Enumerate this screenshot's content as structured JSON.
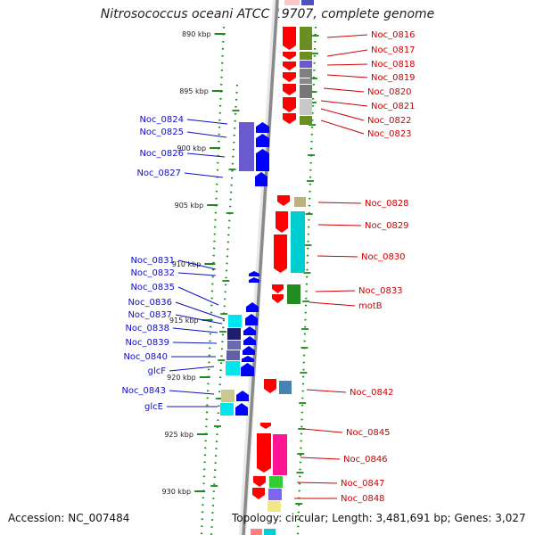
{
  "title": "Nitrosococcus oceani ATCC 19707, complete genome",
  "accession": "Accession: NC_007484",
  "topology": "Topology: circular; Length: 3,481,691 bp; Genes: 3,027",
  "colors": {
    "forward_gene": "#ff0000",
    "reverse_gene": "#0000ff",
    "label_forward": "#d00000",
    "label_reverse": "#1010c0",
    "scale_tick": "#1a8a1a",
    "backbone": "#8a8a8a"
  },
  "scale": {
    "unit": "kbp",
    "labels": [
      "890 kbp",
      "895 kbp",
      "900 kbp",
      "905 kbp",
      "910 kbp",
      "915 kbp",
      "920 kbp",
      "925 kbp",
      "930 kbp"
    ]
  },
  "forward_genes": [
    "Noc_0816",
    "Noc_0817",
    "Noc_0818",
    "Noc_0819",
    "Noc_0820",
    "Noc_0821",
    "Noc_0822",
    "Noc_0823",
    "Noc_0828",
    "Noc_0829",
    "Noc_0830",
    "Noc_0833",
    "motB",
    "Noc_0842",
    "Noc_0845",
    "Noc_0846",
    "Noc_0847",
    "Noc_0848"
  ],
  "reverse_genes": [
    "Noc_0824",
    "Noc_0825",
    "Noc_0826",
    "Noc_0827",
    "Noc_0831",
    "Noc_0832",
    "Noc_0835",
    "Noc_0836",
    "Noc_0837",
    "Noc_0838",
    "Noc_0839",
    "Noc_0840",
    "glcF",
    "Noc_0843",
    "glcE"
  ]
}
